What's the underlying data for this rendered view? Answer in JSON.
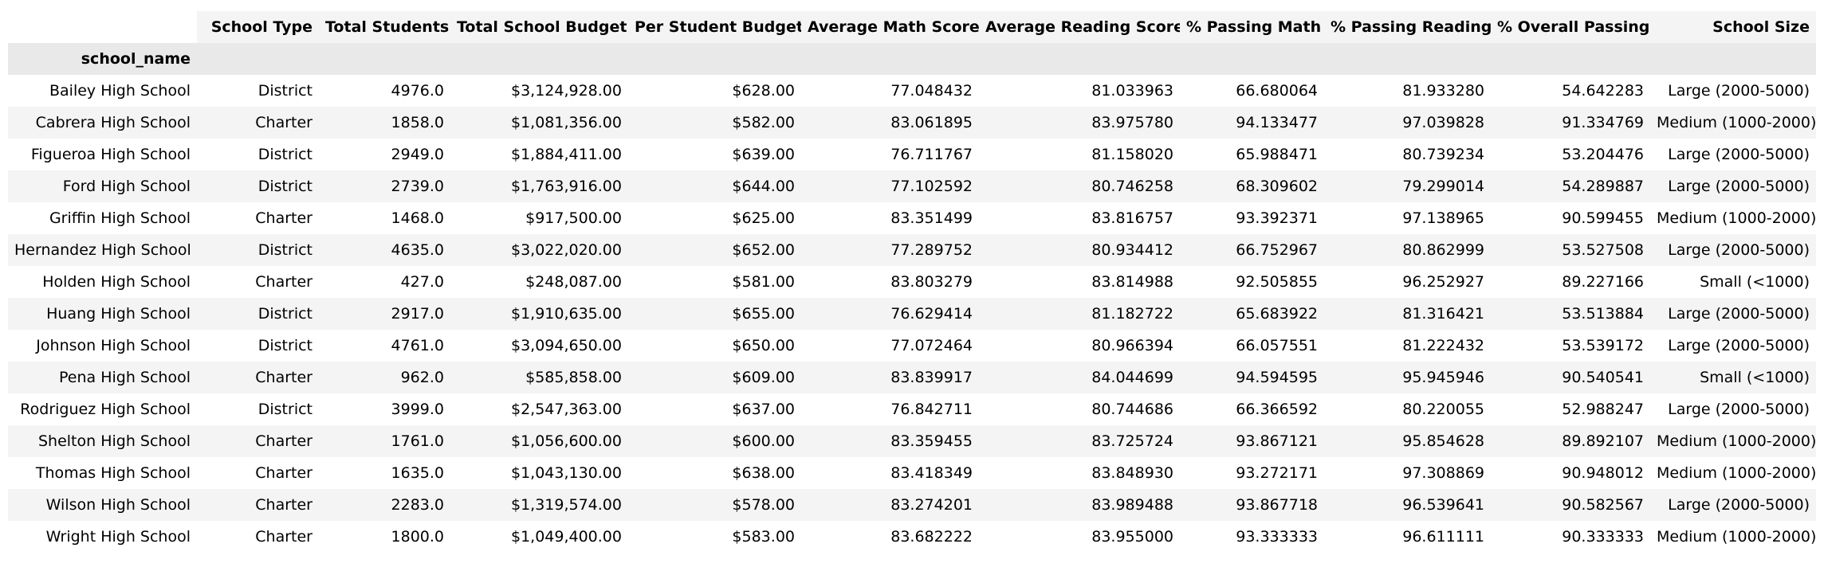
{
  "table": {
    "index_name": "school_name",
    "columns": [
      "School Type",
      "Total Students",
      "Total School Budget",
      "Per Student Budget",
      "Average Math Score",
      "Average Reading Score",
      "% Passing Math",
      "% Passing Reading",
      "% Overall Passing",
      "School Size"
    ],
    "rows": [
      {
        "name": "Bailey High School",
        "cells": [
          "District",
          "4976.0",
          "$3,124,928.00",
          "$628.00",
          "77.048432",
          "81.033963",
          "66.680064",
          "81.933280",
          "54.642283",
          "Large (2000-5000)"
        ]
      },
      {
        "name": "Cabrera High School",
        "cells": [
          "Charter",
          "1858.0",
          "$1,081,356.00",
          "$582.00",
          "83.061895",
          "83.975780",
          "94.133477",
          "97.039828",
          "91.334769",
          "Medium (1000-2000)"
        ]
      },
      {
        "name": "Figueroa High School",
        "cells": [
          "District",
          "2949.0",
          "$1,884,411.00",
          "$639.00",
          "76.711767",
          "81.158020",
          "65.988471",
          "80.739234",
          "53.204476",
          "Large (2000-5000)"
        ]
      },
      {
        "name": "Ford High School",
        "cells": [
          "District",
          "2739.0",
          "$1,763,916.00",
          "$644.00",
          "77.102592",
          "80.746258",
          "68.309602",
          "79.299014",
          "54.289887",
          "Large (2000-5000)"
        ]
      },
      {
        "name": "Griffin High School",
        "cells": [
          "Charter",
          "1468.0",
          "$917,500.00",
          "$625.00",
          "83.351499",
          "83.816757",
          "93.392371",
          "97.138965",
          "90.599455",
          "Medium (1000-2000)"
        ]
      },
      {
        "name": "Hernandez High School",
        "cells": [
          "District",
          "4635.0",
          "$3,022,020.00",
          "$652.00",
          "77.289752",
          "80.934412",
          "66.752967",
          "80.862999",
          "53.527508",
          "Large (2000-5000)"
        ]
      },
      {
        "name": "Holden High School",
        "cells": [
          "Charter",
          "427.0",
          "$248,087.00",
          "$581.00",
          "83.803279",
          "83.814988",
          "92.505855",
          "96.252927",
          "89.227166",
          "Small (<1000)"
        ]
      },
      {
        "name": "Huang High School",
        "cells": [
          "District",
          "2917.0",
          "$1,910,635.00",
          "$655.00",
          "76.629414",
          "81.182722",
          "65.683922",
          "81.316421",
          "53.513884",
          "Large (2000-5000)"
        ]
      },
      {
        "name": "Johnson High School",
        "cells": [
          "District",
          "4761.0",
          "$3,094,650.00",
          "$650.00",
          "77.072464",
          "80.966394",
          "66.057551",
          "81.222432",
          "53.539172",
          "Large (2000-5000)"
        ]
      },
      {
        "name": "Pena High School",
        "cells": [
          "Charter",
          "962.0",
          "$585,858.00",
          "$609.00",
          "83.839917",
          "84.044699",
          "94.594595",
          "95.945946",
          "90.540541",
          "Small (<1000)"
        ]
      },
      {
        "name": "Rodriguez High School",
        "cells": [
          "District",
          "3999.0",
          "$2,547,363.00",
          "$637.00",
          "76.842711",
          "80.744686",
          "66.366592",
          "80.220055",
          "52.988247",
          "Large (2000-5000)"
        ]
      },
      {
        "name": "Shelton High School",
        "cells": [
          "Charter",
          "1761.0",
          "$1,056,600.00",
          "$600.00",
          "83.359455",
          "83.725724",
          "93.867121",
          "95.854628",
          "89.892107",
          "Medium (1000-2000)"
        ]
      },
      {
        "name": "Thomas High School",
        "cells": [
          "Charter",
          "1635.0",
          "$1,043,130.00",
          "$638.00",
          "83.418349",
          "83.848930",
          "93.272171",
          "97.308869",
          "90.948012",
          "Medium (1000-2000)"
        ]
      },
      {
        "name": "Wilson High School",
        "cells": [
          "Charter",
          "2283.0",
          "$1,319,574.00",
          "$578.00",
          "83.274201",
          "83.989488",
          "93.867718",
          "96.539641",
          "90.582567",
          "Large (2000-5000)"
        ]
      },
      {
        "name": "Wright High School",
        "cells": [
          "Charter",
          "1800.0",
          "$1,049,400.00",
          "$583.00",
          "83.682222",
          "83.955000",
          "93.333333",
          "96.611111",
          "90.333333",
          "Medium (1000-2000)"
        ]
      }
    ]
  }
}
